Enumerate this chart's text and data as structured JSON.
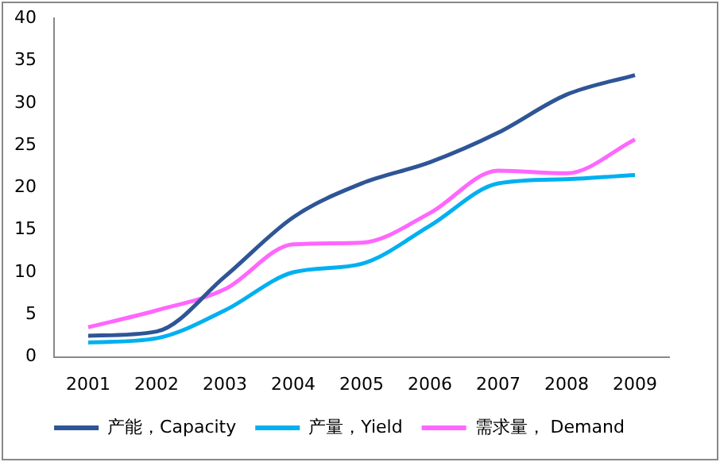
{
  "chart_data": {
    "type": "line",
    "categories": [
      "2001",
      "2002",
      "2003",
      "2004",
      "2005",
      "2006",
      "2007",
      "2008",
      "2009"
    ],
    "series": [
      {
        "name": "产能，Capacity",
        "color": "#2e5596",
        "values": [
          2.5,
          3,
          9.5,
          16.5,
          20.5,
          23,
          26.5,
          31,
          33.3
        ]
      },
      {
        "name": "产量，Yield",
        "color": "#00b0f0",
        "values": [
          1.7,
          2.2,
          5.5,
          10,
          11,
          15.5,
          20.5,
          21,
          21.5
        ]
      },
      {
        "name": "需求量， Demand",
        "color": "#ff66ff",
        "values": [
          3.5,
          5.5,
          8,
          13.3,
          13.5,
          17,
          22,
          21.7,
          25.7
        ]
      }
    ],
    "ylim": [
      0,
      40
    ],
    "yticks": [
      0,
      5,
      10,
      15,
      20,
      25,
      30,
      35,
      40
    ],
    "grid": false,
    "legend": "bottom",
    "marker": "none",
    "line_style": "solid"
  }
}
